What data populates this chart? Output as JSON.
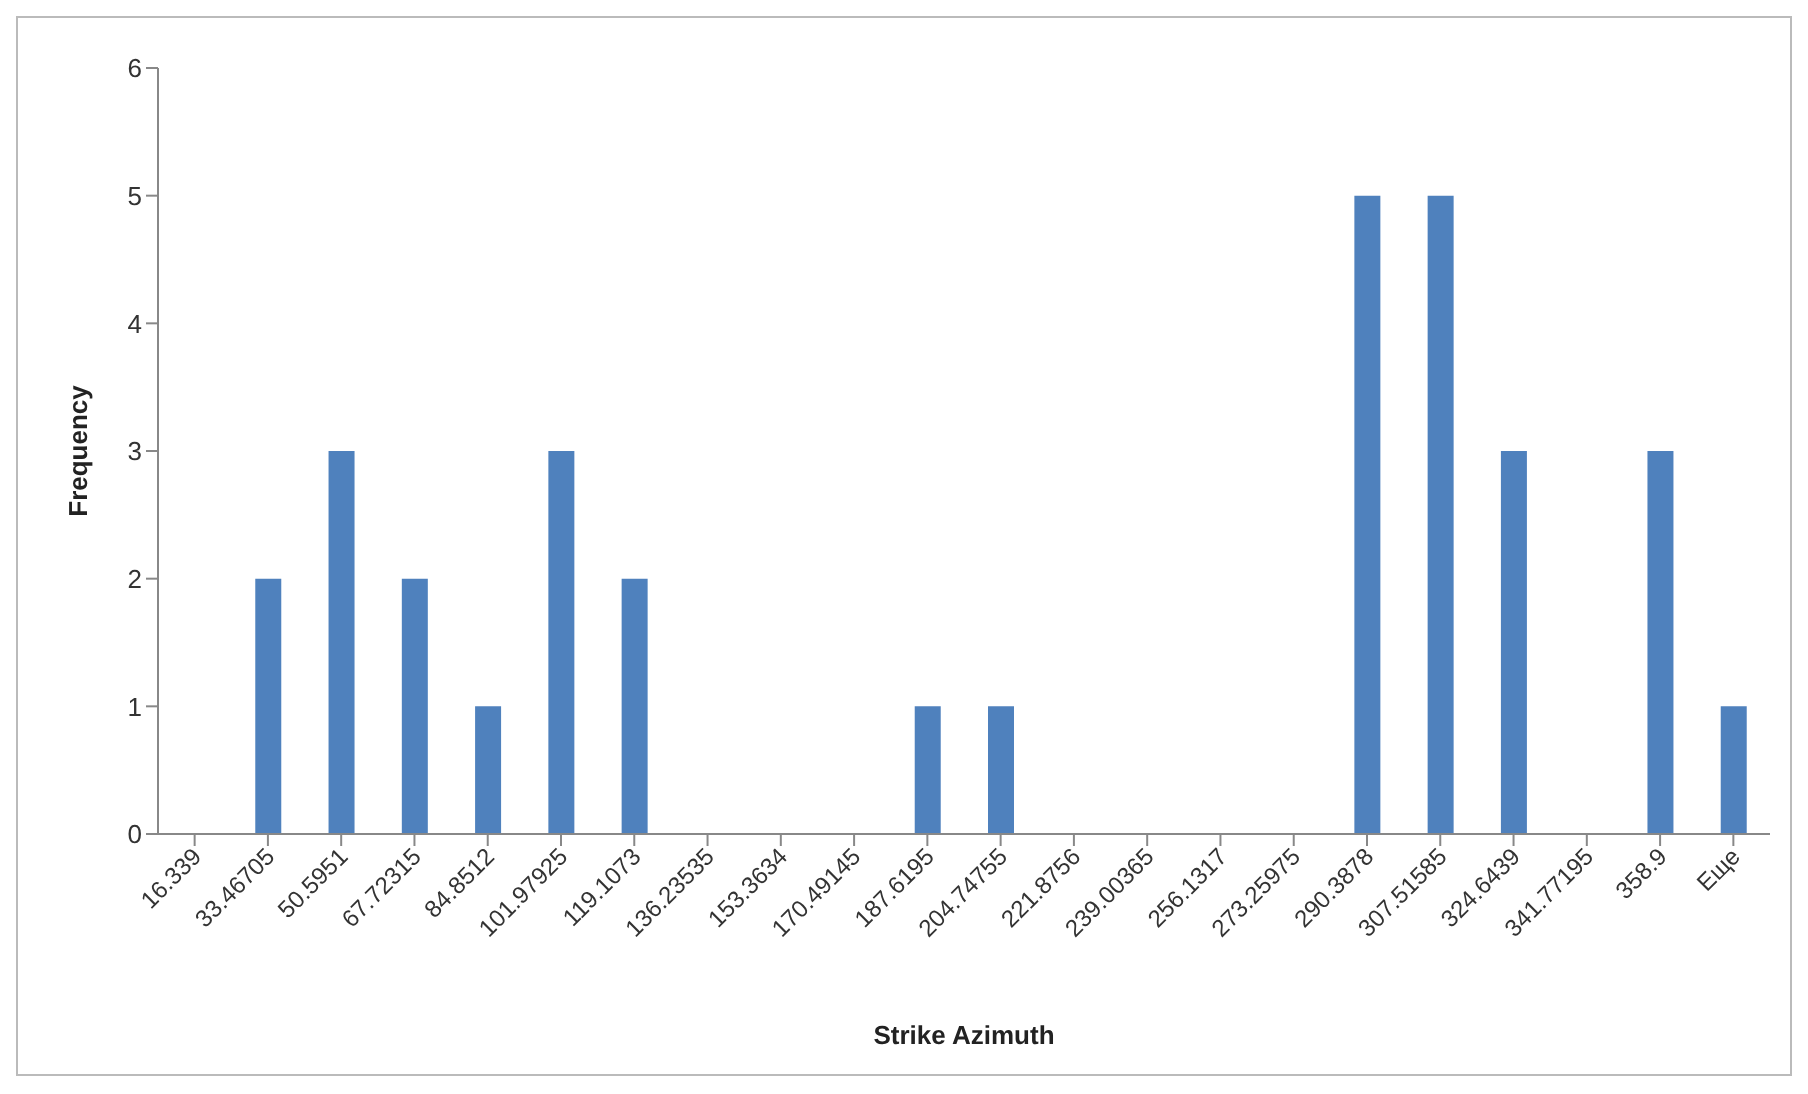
{
  "chart_data": {
    "type": "bar",
    "xlabel": "Strike Azimuth",
    "ylabel": "Frequency",
    "categories": [
      "16.339",
      "33.46705",
      "50.5951",
      "67.72315",
      "84.8512",
      "101.97925",
      "119.1073",
      "136.23535",
      "153.3634",
      "170.49145",
      "187.6195",
      "204.74755",
      "221.8756",
      "239.00365",
      "256.1317",
      "273.25975",
      "290.3878",
      "307.51585",
      "324.6439",
      "341.77195",
      "358.9",
      "Еще"
    ],
    "values": [
      0,
      2,
      3,
      2,
      1,
      3,
      2,
      0,
      0,
      0,
      1,
      1,
      0,
      0,
      0,
      0,
      5,
      5,
      3,
      0,
      3,
      1
    ],
    "color": "#4f81bd",
    "ylim": [
      0,
      6
    ],
    "yticks": [
      0,
      1,
      2,
      3,
      4,
      5,
      6
    ],
    "grid": false,
    "legend": false
  }
}
